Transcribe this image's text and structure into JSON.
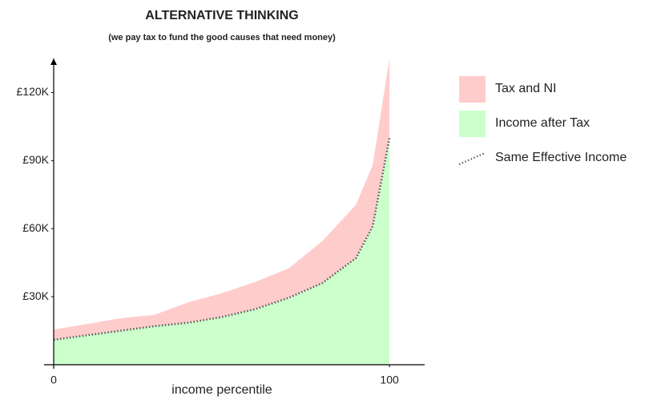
{
  "chart_data": {
    "type": "area",
    "title": "ALTERNATIVE THINKING",
    "subtitle": "(we pay tax to fund the good causes that need money)",
    "x_label": "income percentile",
    "x": [
      0,
      10,
      20,
      30,
      40,
      50,
      60,
      70,
      80,
      90,
      95,
      100
    ],
    "series": [
      {
        "name": "Tax and NI",
        "color": "#ffcccc",
        "style": "stacked-area",
        "values": [
          4500,
          5000,
          5500,
          5000,
          9000,
          10500,
          12000,
          13000,
          18500,
          23500,
          27000,
          35000
        ]
      },
      {
        "name": "Income after Tax",
        "color": "#ccffcc",
        "style": "area",
        "values": [
          11000,
          13000,
          15000,
          17000,
          18500,
          21000,
          24500,
          29500,
          36000,
          47000,
          61000,
          100000
        ]
      },
      {
        "name": "Same Effective Income",
        "color": "#555555",
        "style": "dotted-line",
        "values": [
          11000,
          13000,
          15000,
          17000,
          18500,
          21000,
          24500,
          29500,
          36000,
          47000,
          61000,
          100000
        ]
      }
    ],
    "xlim": [
      0,
      110
    ],
    "xticks": [
      0,
      100
    ],
    "ylim": [
      0,
      135000
    ],
    "yticks": [
      {
        "value": 30000,
        "label": "£30K"
      },
      {
        "value": 60000,
        "label": "£60K"
      },
      {
        "value": 90000,
        "label": "£90K"
      },
      {
        "value": 120000,
        "label": "£120K"
      }
    ],
    "legend": "right"
  }
}
